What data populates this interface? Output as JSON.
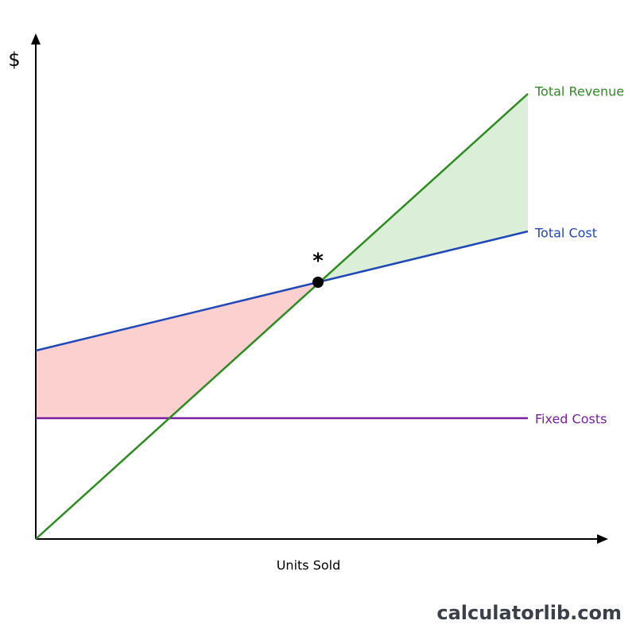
{
  "diagram": {
    "y_axis_label": "$",
    "x_axis_label": "Units Sold",
    "lines": [
      {
        "label": "Total Revenue"
      },
      {
        "label": "Total Cost"
      },
      {
        "label": "Fixed Costs"
      }
    ],
    "break_even_marker": "*"
  },
  "footer": {
    "brand": "calculatorlib.com"
  }
}
